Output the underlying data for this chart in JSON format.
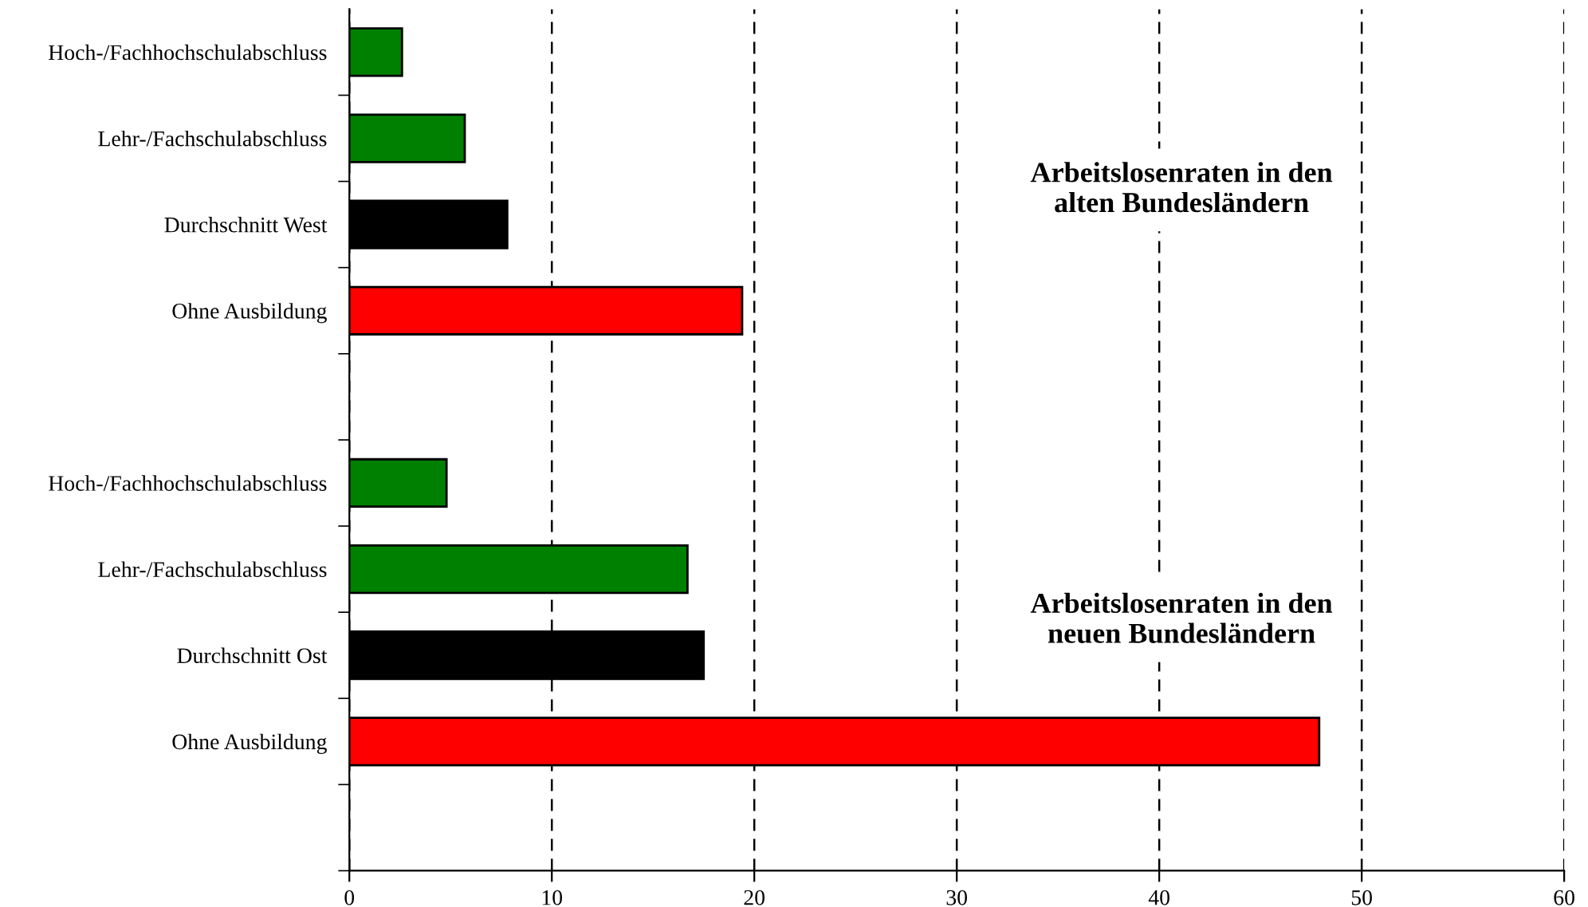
{
  "chart_data": {
    "type": "bar",
    "orientation": "horizontal",
    "categories": [
      "Hoch-/Fachhochschulabschluss",
      "Lehr-/Fachschulabschluss",
      "Durchschnitt West",
      "Ohne Ausbildung",
      null,
      "Hoch-/Fachhochschulabschluss",
      "Lehr-/Fachschulabschluss",
      "Durchschnitt Ost",
      "Ohne Ausbildung",
      null
    ],
    "values": [
      2.6,
      5.7,
      7.8,
      19.4,
      null,
      4.8,
      16.7,
      17.5,
      47.9,
      null
    ],
    "colors": [
      "#008000",
      "#008000",
      "#000000",
      "#ff0000",
      null,
      "#008000",
      "#008000",
      "#000000",
      "#ff0000",
      null
    ],
    "xlim": [
      0,
      60
    ],
    "xticks": [
      0,
      10,
      20,
      30,
      40,
      50,
      60
    ],
    "grid": "x",
    "legend": false,
    "annotations": [
      "Arbeitslosenraten in den\nalten Bundesländern",
      "Arbeitslosenraten in den\nneuen Bundesländern"
    ]
  }
}
